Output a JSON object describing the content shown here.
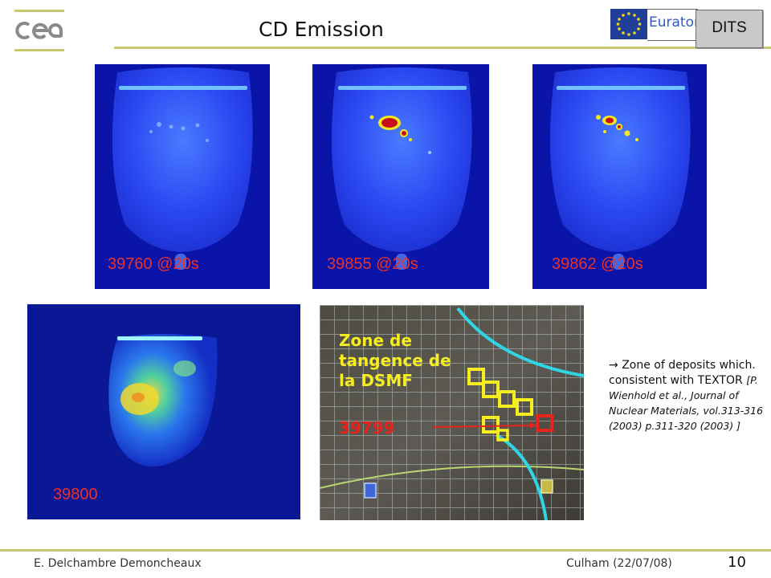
{
  "slide": {
    "title": "CD Emission",
    "euratom_label": "Euratom",
    "dits_label": "DITS",
    "page_number": "10",
    "footer_author": "E. Delchambre Demoncheaux",
    "footer_venue": "Culham (22/07/08)"
  },
  "images": {
    "frame1_label": "39760 @20s",
    "frame2_label": "39855 @20s",
    "frame3_label": "39862 @20s",
    "frame4_label": "39800"
  },
  "photo": {
    "zone_line1": "Zone de",
    "zone_line2": "tangence de",
    "zone_line3": "la DSMF",
    "shot_number": "39799"
  },
  "note": {
    "arrow": "→",
    "text": "Zone of deposits which. consistent with TEXTOR",
    "reference": "[P. Wienhold et al., Journal of Nuclear Materials, vol.313-316 (2003) p.311-320 (2003) ]"
  },
  "colors": {
    "accent_line": "#c8c86e",
    "label_red": "#e8322a",
    "photo_yellow": "#f6ee1e",
    "photo_cyan": "#2fd7e6"
  }
}
